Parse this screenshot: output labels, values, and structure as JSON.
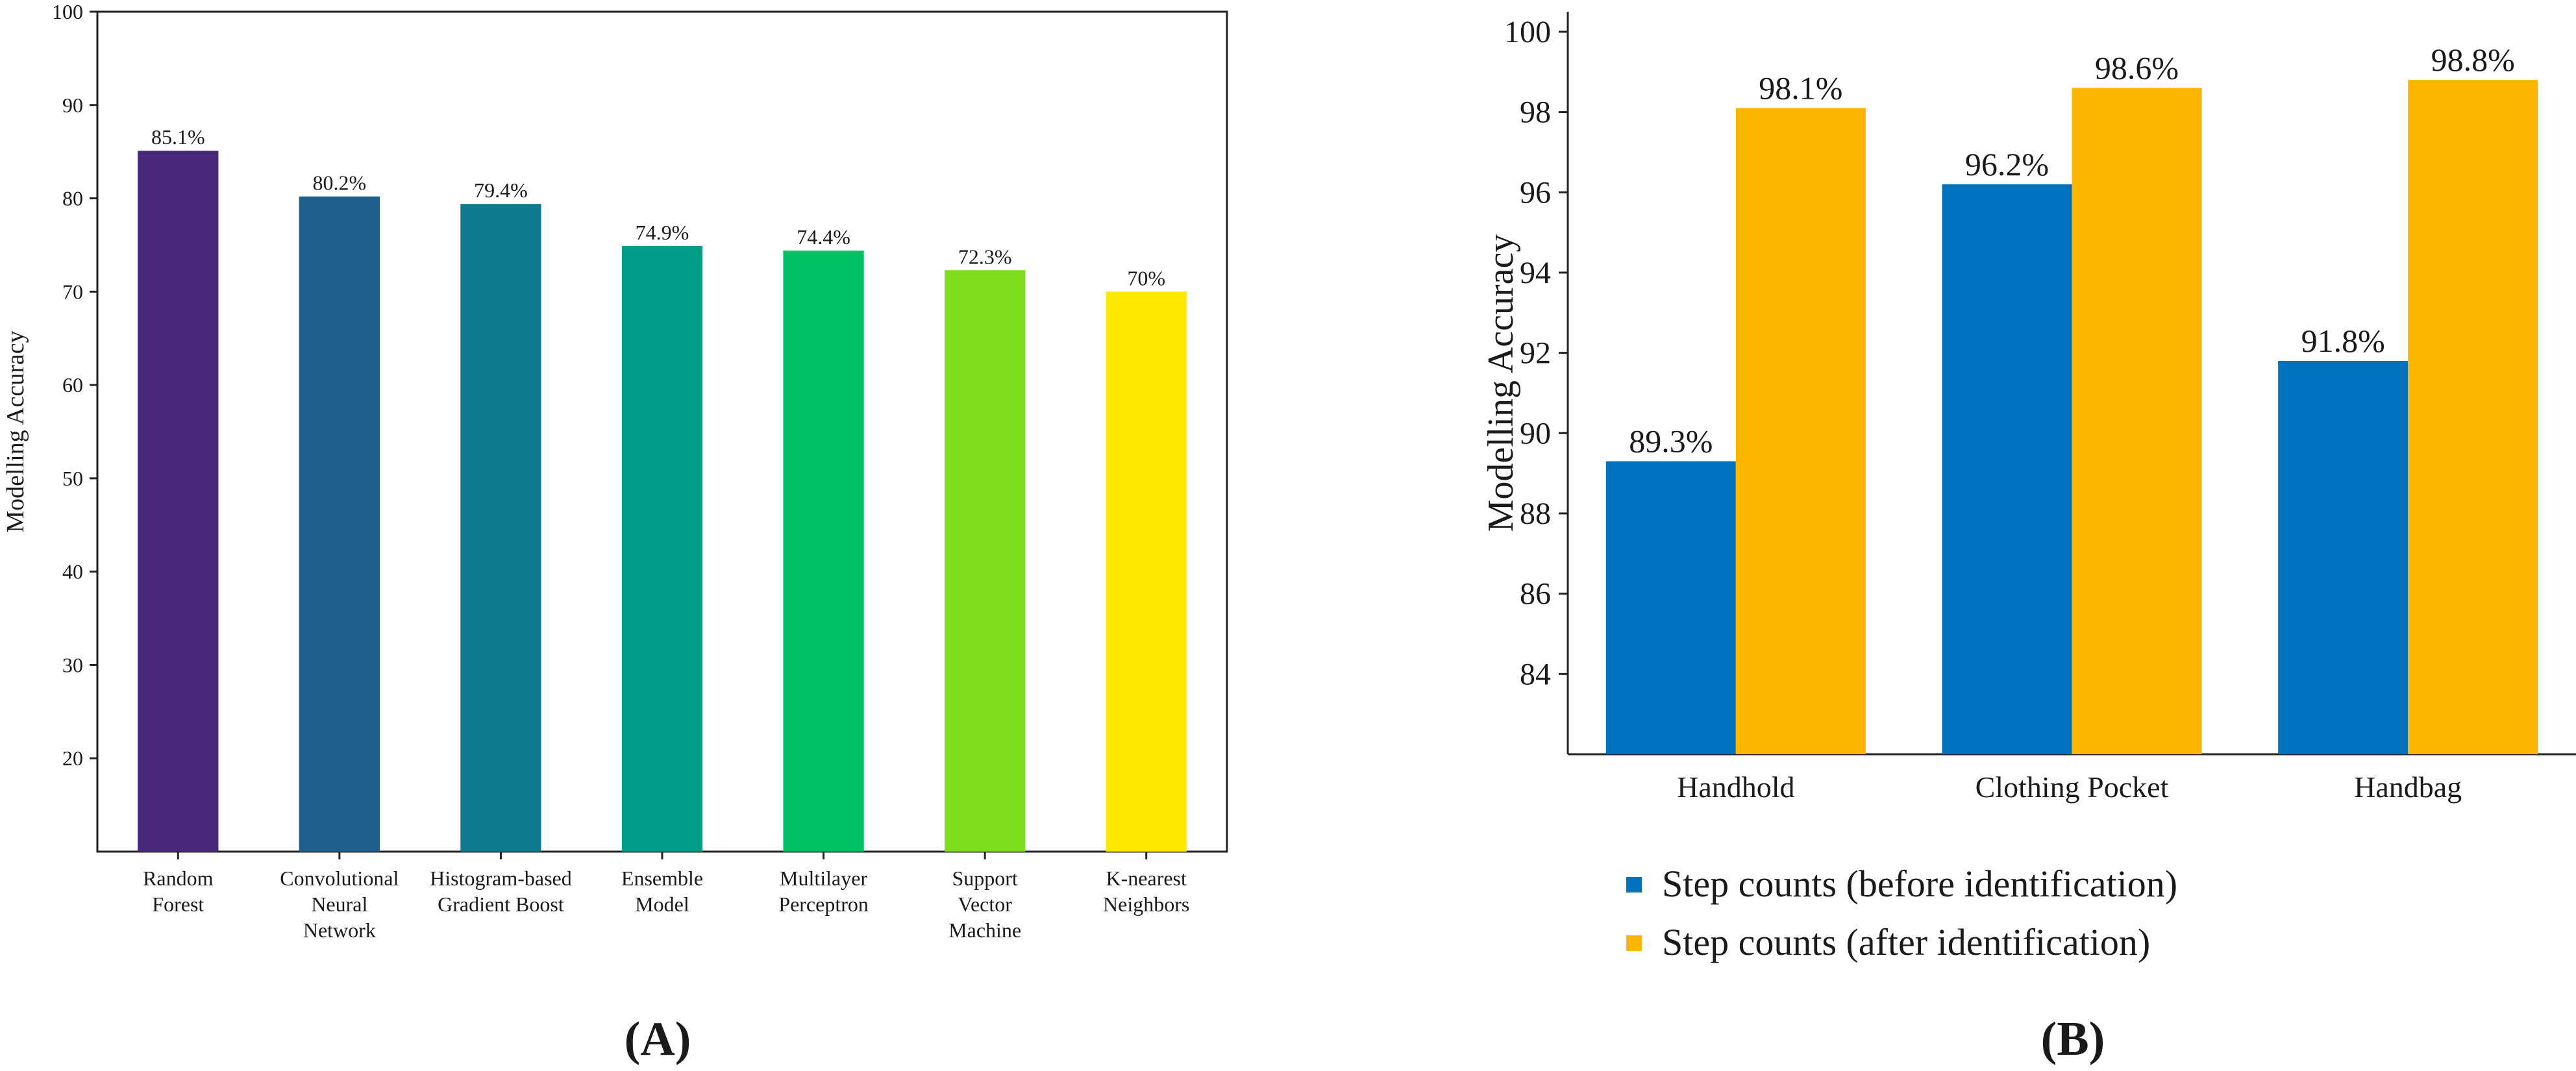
{
  "chart_data": [
    {
      "panel_label": "(A)",
      "type": "bar",
      "ylabel": "Modelling Accuracy",
      "ylim": [
        10,
        100
      ],
      "yticks": [
        20,
        30,
        40,
        50,
        60,
        70,
        80,
        90,
        100
      ],
      "categories": [
        [
          "Random",
          "Forest"
        ],
        [
          "Convolutional",
          "Neural",
          "Network"
        ],
        [
          "Histogram-based",
          "Gradient Boost"
        ],
        [
          "Ensemble",
          "Model"
        ],
        [
          "Multilayer",
          "Perceptron"
        ],
        [
          "Support",
          "Vector",
          "Machine"
        ],
        [
          "K-nearest",
          "Neighbors"
        ]
      ],
      "values": [
        85.1,
        80.2,
        79.4,
        74.9,
        74.4,
        72.3,
        70
      ],
      "data_labels": [
        "85.1%",
        "80.2%",
        "79.4%",
        "74.9%",
        "74.4%",
        "72.3%",
        "70%"
      ],
      "colors": [
        "#482878",
        "#1f5f8b",
        "#0f7b8f",
        "#009e8a",
        "#00c164",
        "#80dc1e",
        "#fde800"
      ]
    },
    {
      "panel_label": "(B)",
      "type": "bar",
      "ylabel": "Modelling Accuracy",
      "ylim": [
        82,
        100.5
      ],
      "yticks": [
        84,
        86,
        88,
        90,
        92,
        94,
        96,
        98,
        100
      ],
      "categories": [
        "Handhold",
        "Clothing Pocket",
        "Handbag"
      ],
      "series": [
        {
          "name": "Step counts (before identification)",
          "color": "#0072bd",
          "values": [
            89.3,
            96.2,
            91.8
          ],
          "data_labels": [
            "89.3%",
            "96.2%",
            "91.8%"
          ]
        },
        {
          "name": "Step counts (after identification)",
          "color": "#fdb600",
          "values": [
            98.1,
            98.6,
            98.8
          ],
          "data_labels": [
            "98.1%",
            "98.6%",
            "98.8%"
          ]
        }
      ]
    }
  ]
}
